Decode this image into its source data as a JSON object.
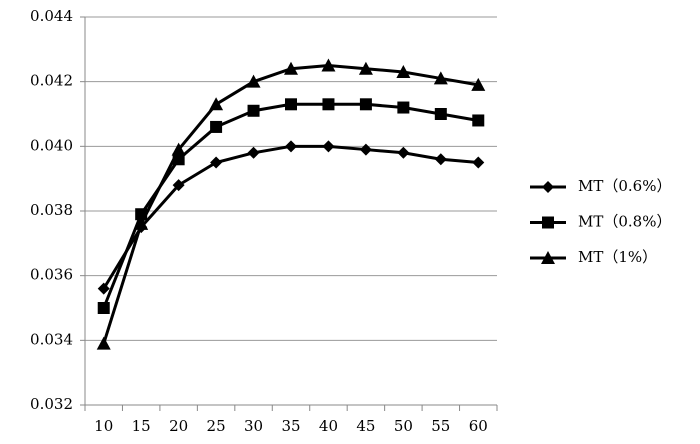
{
  "chart_data": {
    "type": "line",
    "categories": [
      "10",
      "15",
      "20",
      "25",
      "30",
      "35",
      "40",
      "45",
      "50",
      "55",
      "60"
    ],
    "series": [
      {
        "name": "MT（0.6%）",
        "color": "#000000",
        "marker": "diamond",
        "values": [
          0.0356,
          0.0375,
          0.0388,
          0.0395,
          0.0398,
          0.04,
          0.04,
          0.0399,
          0.0398,
          0.0396,
          0.0395
        ]
      },
      {
        "name": "MT（0.8%）",
        "color": "#000000",
        "marker": "square",
        "values": [
          0.035,
          0.0379,
          0.0396,
          0.0406,
          0.0411,
          0.0413,
          0.0413,
          0.0413,
          0.0412,
          0.041,
          0.0408
        ]
      },
      {
        "name": "MT（1%）",
        "color": "#000000",
        "marker": "triangle",
        "values": [
          0.0339,
          0.0376,
          0.0399,
          0.0413,
          0.042,
          0.0424,
          0.0425,
          0.0424,
          0.0423,
          0.0421,
          0.0419
        ]
      }
    ],
    "ylim": [
      0.032,
      0.044
    ],
    "yticks": [
      0.032,
      0.034,
      0.036,
      0.038,
      {
        "value": 0.04,
        "label": "0.040"
      },
      0.042,
      0.044
    ],
    "grid": true,
    "legend": "right"
  }
}
